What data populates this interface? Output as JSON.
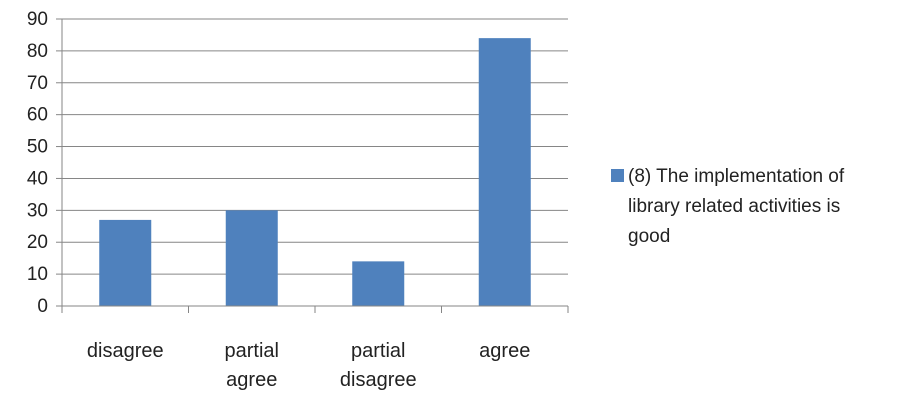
{
  "chart_data": {
    "type": "bar",
    "categories": [
      [
        "disagree"
      ],
      [
        "partial",
        "agree"
      ],
      [
        "partial",
        "disagree"
      ],
      [
        "agree"
      ]
    ],
    "series": [
      {
        "name": "(8) The implementation of library related activities is good",
        "name_lines": [
          "(8) The implementation of",
          "library related activities is",
          "good"
        ],
        "values": [
          27,
          30,
          14,
          84
        ],
        "color": "#4f81bd"
      }
    ],
    "ylim": [
      0,
      90
    ],
    "yticks": [
      0,
      10,
      20,
      30,
      40,
      50,
      60,
      70,
      80,
      90
    ],
    "grid": true,
    "legend_position": "right"
  }
}
